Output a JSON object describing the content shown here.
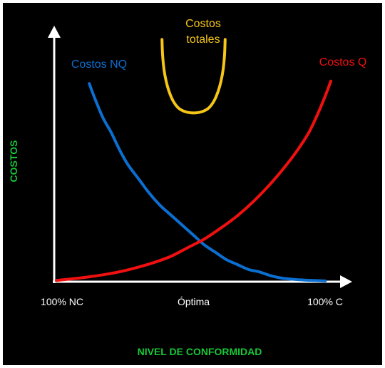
{
  "chart_data": {
    "type": "line",
    "title": "",
    "xlabel": "NIVEL DE CONFORMIDAD",
    "ylabel": "COSTOS",
    "xlim": [
      0,
      100
    ],
    "ylim": [
      0,
      100
    ],
    "grid": false,
    "legend": "none",
    "x_tick_labels": [
      {
        "x": 0,
        "label": "100% NC"
      },
      {
        "x": 50,
        "label": "Óptima"
      },
      {
        "x": 100,
        "label": "100% C"
      }
    ],
    "label_colors": {
      "axis_labels": "#19c837",
      "tick_labels": "#ffffff",
      "axes": "#ffffff"
    },
    "series": [
      {
        "name": "Costos NQ",
        "label_lines": [
          "Costos NQ"
        ],
        "color": "#0b6fd1",
        "points": [
          [
            12,
            81
          ],
          [
            14,
            75
          ],
          [
            17,
            67
          ],
          [
            20,
            61
          ],
          [
            23,
            54
          ],
          [
            26,
            48
          ],
          [
            30,
            42
          ],
          [
            34,
            36
          ],
          [
            38,
            31
          ],
          [
            42,
            27
          ],
          [
            46,
            23
          ],
          [
            50,
            19
          ],
          [
            54,
            15
          ],
          [
            58,
            12
          ],
          [
            62,
            9
          ],
          [
            66,
            7
          ],
          [
            70,
            5
          ],
          [
            74,
            4
          ],
          [
            78,
            2.5
          ],
          [
            82,
            1.5
          ],
          [
            86,
            1
          ],
          [
            90,
            0.7
          ],
          [
            94,
            0.5
          ],
          [
            98,
            0.3
          ]
        ]
      },
      {
        "name": "Costos Q",
        "label_lines": [
          "Costos Q"
        ],
        "color": "#f01010",
        "points": [
          [
            0,
            0.5
          ],
          [
            6,
            1.2
          ],
          [
            12,
            2
          ],
          [
            18,
            3
          ],
          [
            24,
            4.3
          ],
          [
            30,
            6
          ],
          [
            36,
            8
          ],
          [
            42,
            10.5
          ],
          [
            48,
            14
          ],
          [
            54,
            17.5
          ],
          [
            60,
            22
          ],
          [
            66,
            27
          ],
          [
            72,
            33
          ],
          [
            78,
            40
          ],
          [
            84,
            48
          ],
          [
            88,
            54
          ],
          [
            92,
            61
          ],
          [
            95,
            68
          ],
          [
            98,
            76
          ],
          [
            100,
            82
          ]
        ]
      },
      {
        "name": "Costos totales",
        "label_lines": [
          "Costos",
          "totales"
        ],
        "color": "#f5c518",
        "points": [
          [
            38.5,
            99
          ],
          [
            38.7,
            93
          ],
          [
            39.2,
            87
          ],
          [
            40,
            82
          ],
          [
            41,
            78
          ],
          [
            42.5,
            74
          ],
          [
            44.5,
            71
          ],
          [
            47,
            69.5
          ],
          [
            50,
            69
          ],
          [
            53,
            69.5
          ],
          [
            55.5,
            71
          ],
          [
            57.5,
            74
          ],
          [
            59,
            78
          ],
          [
            60,
            82
          ],
          [
            60.8,
            87
          ],
          [
            61.3,
            93
          ],
          [
            61.5,
            99
          ]
        ]
      }
    ]
  }
}
